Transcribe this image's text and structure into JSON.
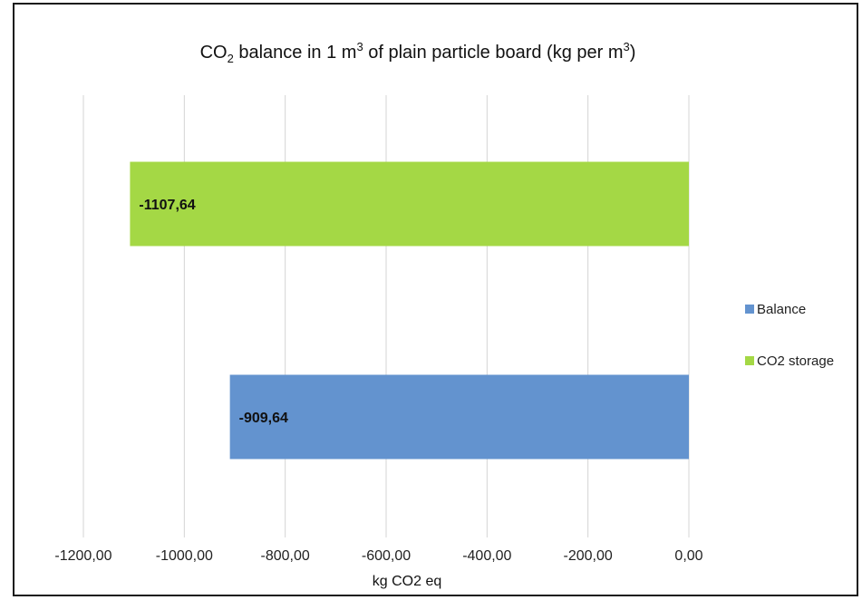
{
  "chart_data": {
    "type": "bar",
    "orientation": "horizontal",
    "title": {
      "prefix": "CO",
      "sub": "2",
      "middle": " balance in 1 m",
      "sup1": "3",
      "suffix": " of plain particle board (kg per m",
      "sup2": "3",
      "end": ")"
    },
    "xlabel": "kg CO2 eq",
    "ylabel": "",
    "xlim": [
      -1200,
      0
    ],
    "xticks": [
      -1200,
      -1000,
      -800,
      -600,
      -400,
      -200,
      0
    ],
    "xtick_labels": [
      "-1200,00",
      "-1000,00",
      "-800,00",
      "-600,00",
      "-400,00",
      "-200,00",
      "0,00"
    ],
    "grid": true,
    "legend_position": "right",
    "series": [
      {
        "name": "Balance",
        "value": -909.64,
        "label": "-909,64",
        "color": "#6393cf"
      },
      {
        "name": "CO2 storage",
        "value": -1107.64,
        "label": "-1107,64",
        "color": "#a4d845"
      }
    ],
    "bar_order_top_to_bottom": [
      "CO2 storage",
      "Balance"
    ]
  }
}
